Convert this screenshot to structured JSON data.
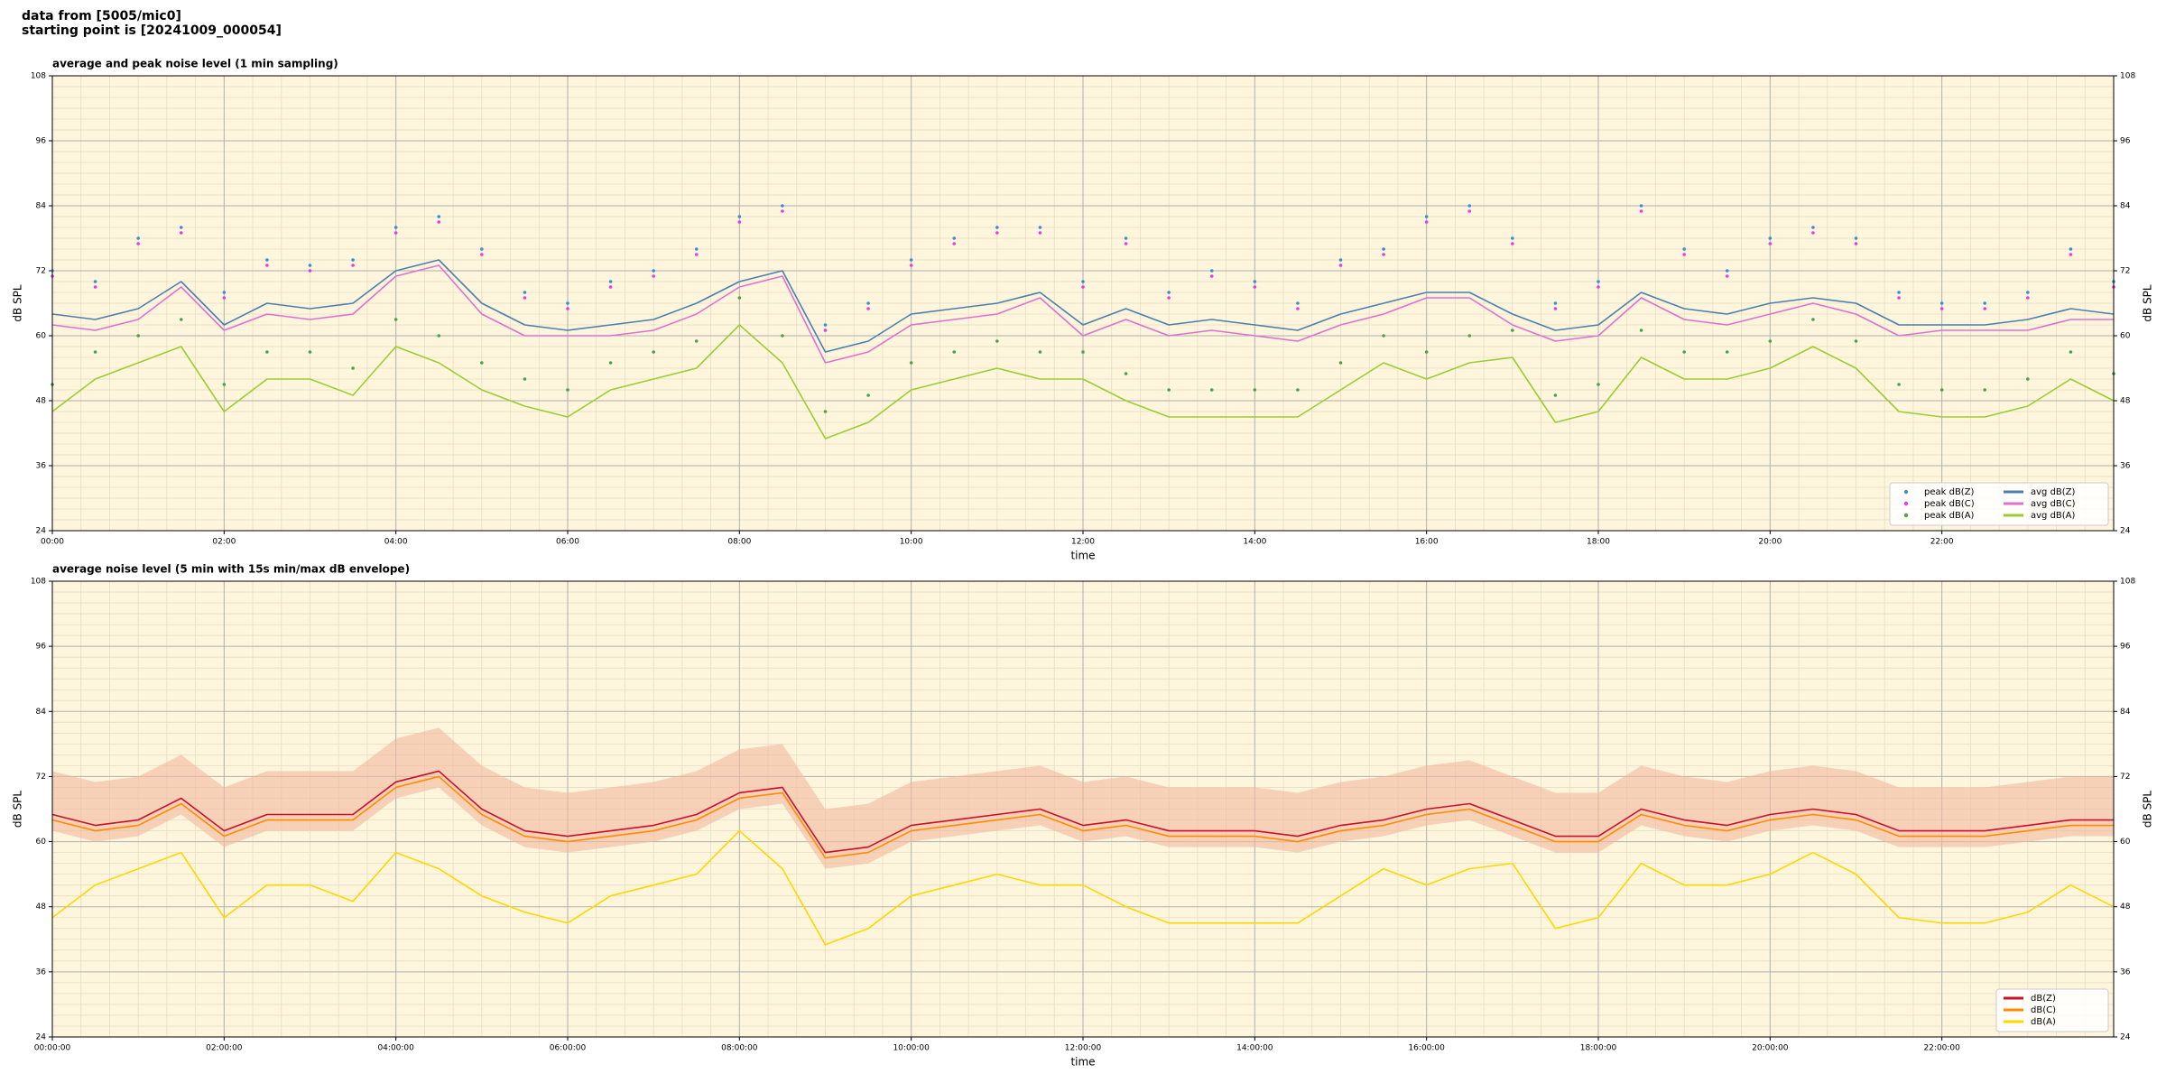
{
  "suptitle": [
    "data from [5005/mic0]",
    "starting point is [20241009_000054]"
  ],
  "chart_data": [
    {
      "type": "line",
      "title": "average and peak noise level (1 min sampling)",
      "xlabel": "time",
      "ylabel": "dB SPL",
      "background": "#fdf6dc",
      "grid": true,
      "minor_grid": true,
      "legend": "lower right",
      "legend_ncol": 2,
      "xlim": [
        0,
        24
      ],
      "ylim": [
        24,
        108
      ],
      "xticks": [
        {
          "value": 0,
          "label": "00:00"
        },
        {
          "value": 2,
          "label": "02:00"
        },
        {
          "value": 4,
          "label": "04:00"
        },
        {
          "value": 6,
          "label": "06:00"
        },
        {
          "value": 8,
          "label": "08:00"
        },
        {
          "value": 10,
          "label": "10:00"
        },
        {
          "value": 12,
          "label": "12:00"
        },
        {
          "value": 14,
          "label": "14:00"
        },
        {
          "value": 16,
          "label": "16:00"
        },
        {
          "value": 18,
          "label": "18:00"
        },
        {
          "value": 20,
          "label": "20:00"
        },
        {
          "value": 22,
          "label": "22:00"
        }
      ],
      "yticks": [
        24,
        36,
        48,
        60,
        72,
        84,
        96,
        108
      ],
      "x": [
        0,
        0.5,
        1,
        1.5,
        2,
        2.5,
        3,
        3.5,
        4,
        4.5,
        5,
        5.5,
        6,
        6.5,
        7,
        7.5,
        8,
        8.5,
        9,
        9.5,
        10,
        10.5,
        11,
        11.5,
        12,
        12.5,
        13,
        13.5,
        14,
        14.5,
        15,
        15.5,
        16,
        16.5,
        17,
        17.5,
        18,
        18.5,
        19,
        19.5,
        20,
        20.5,
        21,
        21.5,
        22,
        22.5,
        23,
        23.5,
        24
      ],
      "series": [
        {
          "name": "peak dB(Z)",
          "type": "scatter",
          "color": "#3a8fd0",
          "values": [
            72,
            70,
            78,
            80,
            68,
            74,
            73,
            74,
            80,
            82,
            76,
            68,
            66,
            70,
            72,
            76,
            82,
            84,
            62,
            66,
            74,
            78,
            80,
            80,
            70,
            78,
            68,
            72,
            70,
            66,
            74,
            76,
            82,
            84,
            78,
            66,
            70,
            84,
            76,
            72,
            78,
            80,
            78,
            68,
            66,
            66,
            68,
            76,
            70
          ]
        },
        {
          "name": "peak dB(C)",
          "type": "scatter",
          "color": "#e040e0",
          "values": [
            71,
            69,
            77,
            79,
            67,
            73,
            72,
            73,
            79,
            81,
            75,
            67,
            65,
            69,
            71,
            75,
            81,
            83,
            61,
            65,
            73,
            77,
            79,
            79,
            69,
            77,
            67,
            71,
            69,
            65,
            73,
            75,
            81,
            83,
            77,
            65,
            69,
            83,
            75,
            71,
            77,
            79,
            77,
            67,
            65,
            65,
            67,
            75,
            69
          ]
        },
        {
          "name": "peak dB(A)",
          "type": "scatter",
          "color": "#4f9f4f",
          "values": [
            51,
            57,
            60,
            63,
            51,
            57,
            57,
            54,
            63,
            60,
            55,
            52,
            50,
            55,
            57,
            59,
            67,
            60,
            46,
            49,
            55,
            57,
            59,
            57,
            57,
            53,
            50,
            50,
            50,
            50,
            55,
            60,
            57,
            60,
            61,
            49,
            51,
            61,
            57,
            57,
            59,
            63,
            59,
            51,
            50,
            50,
            52,
            57,
            53
          ]
        },
        {
          "name": "avg dB(Z)",
          "type": "line",
          "color": "#4a7fb0",
          "values": [
            64,
            63,
            65,
            70,
            62,
            66,
            65,
            66,
            72,
            74,
            66,
            62,
            61,
            62,
            63,
            66,
            70,
            72,
            57,
            59,
            64,
            65,
            66,
            68,
            62,
            65,
            62,
            63,
            62,
            61,
            64,
            66,
            68,
            68,
            64,
            61,
            62,
            68,
            65,
            64,
            66,
            67,
            66,
            62,
            62,
            62,
            63,
            65,
            64
          ]
        },
        {
          "name": "avg dB(C)",
          "type": "line",
          "color": "#e070d0",
          "values": [
            62,
            61,
            63,
            69,
            61,
            64,
            63,
            64,
            71,
            73,
            64,
            60,
            60,
            60,
            61,
            64,
            69,
            71,
            55,
            57,
            62,
            63,
            64,
            67,
            60,
            63,
            60,
            61,
            60,
            59,
            62,
            64,
            67,
            67,
            62,
            59,
            60,
            67,
            63,
            62,
            64,
            66,
            64,
            60,
            61,
            61,
            61,
            63,
            63
          ]
        },
        {
          "name": "avg dB(A)",
          "type": "line",
          "color": "#9acd32",
          "values": [
            46,
            52,
            55,
            58,
            46,
            52,
            52,
            49,
            58,
            55,
            50,
            47,
            45,
            50,
            52,
            54,
            62,
            55,
            41,
            44,
            50,
            52,
            54,
            52,
            52,
            48,
            45,
            45,
            45,
            45,
            50,
            55,
            52,
            55,
            56,
            44,
            46,
            56,
            52,
            52,
            54,
            58,
            54,
            46,
            45,
            45,
            47,
            52,
            48
          ]
        }
      ]
    },
    {
      "type": "line",
      "title": "average noise level (5 min with 15s min/max dB envelope)",
      "xlabel": "time",
      "ylabel": "dB SPL",
      "background": "#fdf6dc",
      "grid": true,
      "minor_grid": true,
      "legend": "lower right",
      "legend_ncol": 1,
      "xlim": [
        0,
        24
      ],
      "ylim": [
        24,
        108
      ],
      "xticks": [
        {
          "value": 0,
          "label": "00:00:00"
        },
        {
          "value": 2,
          "label": "02:00:00"
        },
        {
          "value": 4,
          "label": "04:00:00"
        },
        {
          "value": 6,
          "label": "06:00:00"
        },
        {
          "value": 8,
          "label": "08:00:00"
        },
        {
          "value": 10,
          "label": "10:00:00"
        },
        {
          "value": 12,
          "label": "12:00:00"
        },
        {
          "value": 14,
          "label": "14:00:00"
        },
        {
          "value": 16,
          "label": "16:00:00"
        },
        {
          "value": 18,
          "label": "18:00:00"
        },
        {
          "value": 20,
          "label": "20:00:00"
        },
        {
          "value": 22,
          "label": "22:00:00"
        }
      ],
      "yticks": [
        24,
        36,
        48,
        60,
        72,
        84,
        96,
        108
      ],
      "x": [
        0,
        0.5,
        1,
        1.5,
        2,
        2.5,
        3,
        3.5,
        4,
        4.5,
        5,
        5.5,
        6,
        6.5,
        7,
        7.5,
        8,
        8.5,
        9,
        9.5,
        10,
        10.5,
        11,
        11.5,
        12,
        12.5,
        13,
        13.5,
        14,
        14.5,
        15,
        15.5,
        16,
        16.5,
        17,
        17.5,
        18,
        18.5,
        19,
        19.5,
        20,
        20.5,
        21,
        21.5,
        22,
        22.5,
        23,
        23.5,
        24
      ],
      "envelope": {
        "color": "#f4b8a0",
        "upper": [
          73,
          71,
          72,
          76,
          70,
          73,
          73,
          73,
          79,
          81,
          74,
          70,
          69,
          70,
          71,
          73,
          77,
          78,
          66,
          67,
          71,
          72,
          73,
          74,
          71,
          72,
          70,
          70,
          70,
          69,
          71,
          72,
          74,
          75,
          72,
          69,
          69,
          74,
          72,
          71,
          73,
          74,
          73,
          70,
          70,
          70,
          71,
          72,
          72
        ],
        "lower": [
          62,
          60,
          61,
          65,
          59,
          62,
          62,
          62,
          68,
          70,
          63,
          59,
          58,
          59,
          60,
          62,
          66,
          67,
          55,
          56,
          60,
          61,
          62,
          63,
          60,
          61,
          59,
          59,
          59,
          58,
          60,
          61,
          63,
          64,
          61,
          58,
          58,
          63,
          61,
          60,
          62,
          63,
          62,
          59,
          59,
          59,
          60,
          61,
          61
        ]
      },
      "series": [
        {
          "name": "dB(Z)",
          "type": "line",
          "color": "#c8102e",
          "values": [
            65,
            63,
            64,
            68,
            62,
            65,
            65,
            65,
            71,
            73,
            66,
            62,
            61,
            62,
            63,
            65,
            69,
            70,
            58,
            59,
            63,
            64,
            65,
            66,
            63,
            64,
            62,
            62,
            62,
            61,
            63,
            64,
            66,
            67,
            64,
            61,
            61,
            66,
            64,
            63,
            65,
            66,
            65,
            62,
            62,
            62,
            63,
            64,
            64
          ]
        },
        {
          "name": "dB(C)",
          "type": "line",
          "color": "#ff8c00",
          "values": [
            64,
            62,
            63,
            67,
            61,
            64,
            64,
            64,
            70,
            72,
            65,
            61,
            60,
            61,
            62,
            64,
            68,
            69,
            57,
            58,
            62,
            63,
            64,
            65,
            62,
            63,
            61,
            61,
            61,
            60,
            62,
            63,
            65,
            66,
            63,
            60,
            60,
            65,
            63,
            62,
            64,
            65,
            64,
            61,
            61,
            61,
            62,
            63,
            63
          ]
        },
        {
          "name": "dB(A)",
          "type": "line",
          "color": "#ffd700",
          "values": [
            46,
            52,
            55,
            58,
            46,
            52,
            52,
            49,
            58,
            55,
            50,
            47,
            45,
            50,
            52,
            54,
            62,
            55,
            41,
            44,
            50,
            52,
            54,
            52,
            52,
            48,
            45,
            45,
            45,
            45,
            50,
            55,
            52,
            55,
            56,
            44,
            46,
            56,
            52,
            52,
            54,
            58,
            54,
            46,
            45,
            45,
            47,
            52,
            48
          ]
        }
      ]
    }
  ]
}
